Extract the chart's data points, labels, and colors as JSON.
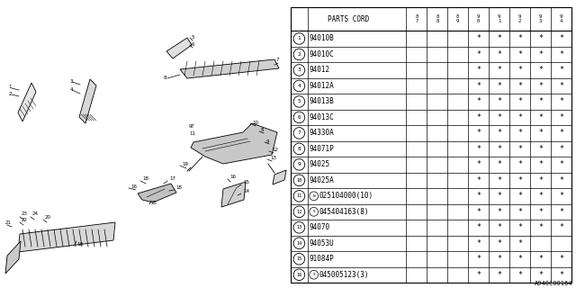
{
  "diagram_ref": "A940C00164",
  "bg_color": "#ffffff",
  "rows": [
    {
      "num": 1,
      "prefix": "",
      "code": "94010B",
      "stars": [
        0,
        0,
        0,
        1,
        1,
        1,
        1,
        1
      ]
    },
    {
      "num": 2,
      "prefix": "",
      "code": "94010C",
      "stars": [
        0,
        0,
        0,
        1,
        1,
        1,
        1,
        1
      ]
    },
    {
      "num": 3,
      "prefix": "",
      "code": "94012",
      "stars": [
        0,
        0,
        0,
        1,
        1,
        1,
        1,
        1
      ]
    },
    {
      "num": 4,
      "prefix": "",
      "code": "94012A",
      "stars": [
        0,
        0,
        0,
        1,
        1,
        1,
        1,
        1
      ]
    },
    {
      "num": 5,
      "prefix": "",
      "code": "94013B",
      "stars": [
        0,
        0,
        0,
        1,
        1,
        1,
        1,
        1
      ]
    },
    {
      "num": 6,
      "prefix": "",
      "code": "94013C",
      "stars": [
        0,
        0,
        0,
        1,
        1,
        1,
        1,
        1
      ]
    },
    {
      "num": 7,
      "prefix": "",
      "code": "94330A",
      "stars": [
        0,
        0,
        0,
        1,
        1,
        1,
        1,
        1
      ]
    },
    {
      "num": 8,
      "prefix": "",
      "code": "94071P",
      "stars": [
        0,
        0,
        0,
        1,
        1,
        1,
        1,
        1
      ]
    },
    {
      "num": 9,
      "prefix": "",
      "code": "94025",
      "stars": [
        0,
        0,
        0,
        1,
        1,
        1,
        1,
        1
      ]
    },
    {
      "num": 10,
      "prefix": "",
      "code": "94025A",
      "stars": [
        0,
        0,
        0,
        1,
        1,
        1,
        1,
        1
      ]
    },
    {
      "num": 11,
      "prefix": "N",
      "code": "025104000(10)",
      "stars": [
        0,
        0,
        0,
        1,
        1,
        1,
        1,
        1
      ]
    },
    {
      "num": 12,
      "prefix": "S",
      "code": "045404163(8)",
      "stars": [
        0,
        0,
        0,
        1,
        1,
        1,
        1,
        1
      ]
    },
    {
      "num": 13,
      "prefix": "",
      "code": "94070",
      "stars": [
        0,
        0,
        0,
        1,
        1,
        1,
        1,
        1
      ]
    },
    {
      "num": 14,
      "prefix": "",
      "code": "94053U",
      "stars": [
        0,
        0,
        0,
        1,
        1,
        1,
        0,
        0
      ]
    },
    {
      "num": 15,
      "prefix": "",
      "code": "91084P",
      "stars": [
        0,
        0,
        0,
        1,
        1,
        1,
        1,
        1
      ]
    },
    {
      "num": 16,
      "prefix": "S",
      "code": "045005123(3)",
      "stars": [
        0,
        0,
        0,
        1,
        1,
        1,
        1,
        1
      ]
    }
  ],
  "year_labels": [
    "8\n7",
    "8\n8",
    "8\n9",
    "9\n0",
    "9\n1",
    "9\n2",
    "9\n3",
    "9\n4"
  ],
  "font_size_table": 5.5,
  "font_size_header": 5.5,
  "line_color": "#000000",
  "text_color": "#000000",
  "col_widths_raw": [
    18,
    105,
    22,
    22,
    22,
    22,
    22,
    22,
    22,
    22
  ]
}
